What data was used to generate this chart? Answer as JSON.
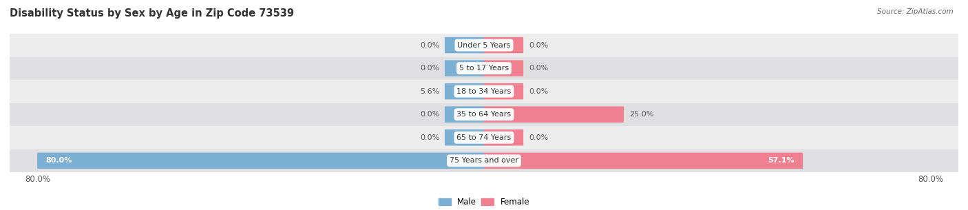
{
  "title": "Disability Status by Sex by Age in Zip Code 73539",
  "source": "Source: ZipAtlas.com",
  "categories": [
    "Under 5 Years",
    "5 to 17 Years",
    "18 to 34 Years",
    "35 to 64 Years",
    "65 to 74 Years",
    "75 Years and over"
  ],
  "male_values": [
    0.0,
    0.0,
    5.6,
    0.0,
    0.0,
    80.0
  ],
  "female_values": [
    0.0,
    0.0,
    0.0,
    25.0,
    0.0,
    57.1
  ],
  "male_color": "#7bafd4",
  "female_color": "#f08090",
  "row_bg_color_odd": "#ededee",
  "row_bg_color_even": "#e0e0e2",
  "max_val": 80.0,
  "min_bar": 7.0,
  "bar_height": 0.6,
  "title_fontsize": 10.5,
  "label_fontsize": 8.0,
  "axis_label_fontsize": 8.5,
  "background_color": "#ffffff",
  "value_label_color": "#555555",
  "last_row_text_color": "#ffffff",
  "legend_male": "Male",
  "legend_female": "Female"
}
